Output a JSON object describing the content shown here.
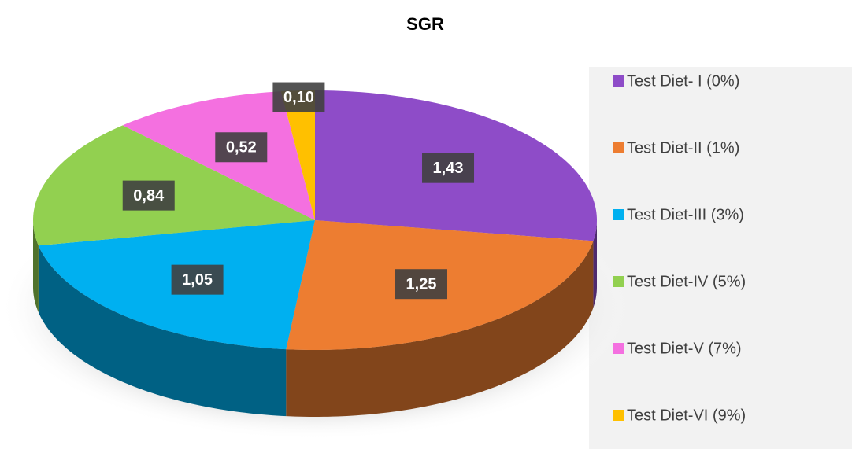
{
  "chart_data": {
    "type": "pie",
    "title": "SGR",
    "categories": [
      "Test Diet- I (0%)",
      "Test Diet-II (1%)",
      "Test Diet-III (3%)",
      "Test Diet-IV (5%)",
      "Test Diet-V (7%)",
      "Test Diet-VI (9%)"
    ],
    "values": [
      1.43,
      1.25,
      1.05,
      0.84,
      0.52,
      0.1
    ],
    "value_labels": [
      "1,43",
      "1,25",
      "1,05",
      "0,84",
      "0,52",
      "0,10"
    ],
    "colors": [
      "#8e4cc8",
      "#ed7d31",
      "#00b0f0",
      "#92d050",
      "#f470e0",
      "#ffc000"
    ],
    "legend": "right"
  }
}
